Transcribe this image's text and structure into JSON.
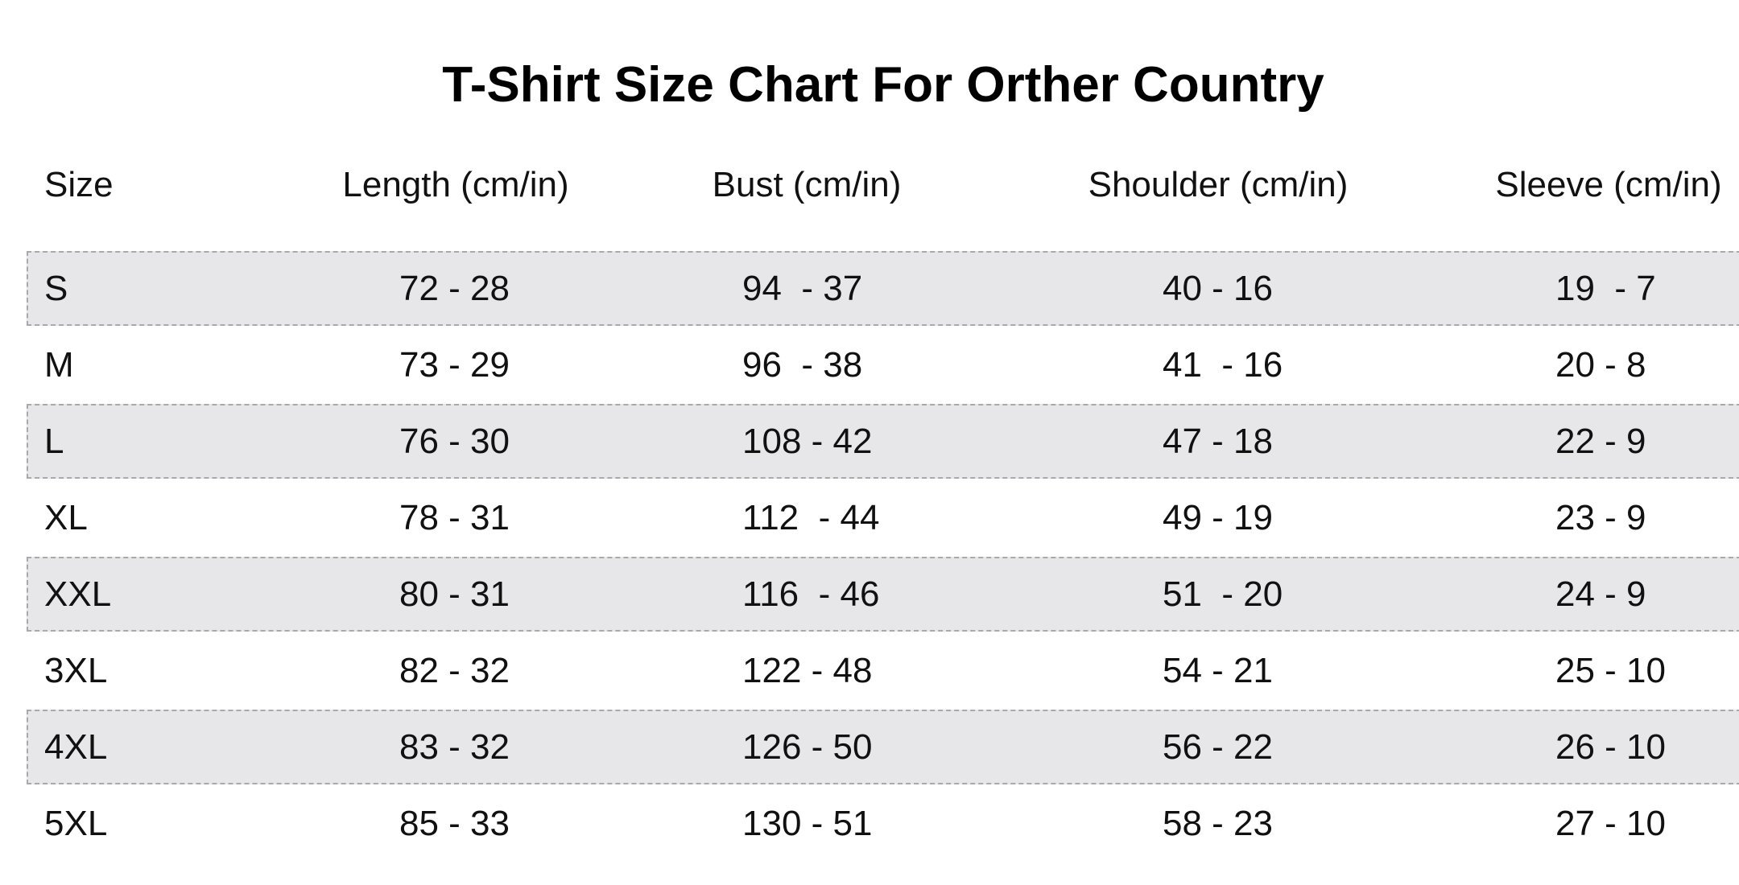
{
  "title": "T-Shirt Size Chart For Orther Country",
  "table": {
    "columns": [
      "Size",
      "Length (cm/in)",
      "Bust (cm/in)",
      "Shoulder (cm/in)",
      "Sleeve (cm/in)"
    ],
    "rows": [
      [
        "S",
        "72 - 28",
        "94  - 37",
        "40 - 16",
        "19  - 7"
      ],
      [
        "M",
        "73 - 29",
        "96  - 38",
        "41  - 16",
        "20 - 8"
      ],
      [
        "L",
        "76 - 30",
        "108 - 42",
        "47 - 18",
        "22 - 9"
      ],
      [
        "XL",
        "78 - 31",
        "112  - 44",
        "49 - 19",
        "23 - 9"
      ],
      [
        "XXL",
        "80 - 31",
        "116  - 46",
        "51  - 20",
        "24 - 9"
      ],
      [
        "3XL",
        "82 - 32",
        "122 - 48",
        "54 - 21",
        "25 - 10"
      ],
      [
        "4XL",
        "83 - 32",
        "126 - 50",
        "56 - 22",
        "26 - 10"
      ],
      [
        "5XL",
        "85 - 33",
        "130 - 51",
        "58 - 23",
        "27 - 10"
      ]
    ]
  }
}
